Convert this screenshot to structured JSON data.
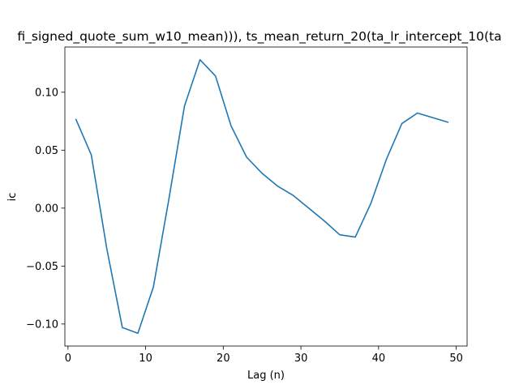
{
  "chart_data": {
    "type": "line",
    "title": "fi_signed_quote_sum_w10_mean))), ts_mean_return_20(ta_lr_intercept_10(ta",
    "xlabel": "Lag (n)",
    "ylabel": "ic",
    "xlim": [
      -0.4,
      51.4
    ],
    "ylim": [
      -0.119,
      0.139
    ],
    "xticks": [
      0,
      10,
      20,
      30,
      40,
      50
    ],
    "xtick_labels": [
      "0",
      "10",
      "20",
      "30",
      "40",
      "50"
    ],
    "yticks": [
      -0.1,
      -0.05,
      0.0,
      0.05,
      0.1
    ],
    "ytick_labels": [
      "−0.10",
      "−0.05",
      "0.00",
      "0.05",
      "0.10"
    ],
    "grid": false,
    "series": [
      {
        "color": "#1f77b4",
        "x": [
          1,
          3,
          5,
          7,
          9,
          11,
          13,
          15,
          17,
          19,
          21,
          23,
          25,
          27,
          29,
          31,
          33,
          35,
          37,
          39,
          41,
          43,
          45,
          47,
          49
        ],
        "y": [
          0.077,
          0.046,
          -0.035,
          -0.103,
          -0.108,
          -0.068,
          0.008,
          0.088,
          0.128,
          0.114,
          0.071,
          0.044,
          0.03,
          0.019,
          0.011,
          -0.0,
          -0.011,
          -0.023,
          -0.025,
          0.004,
          0.042,
          0.073,
          0.082,
          0.078,
          0.074
        ]
      }
    ]
  }
}
